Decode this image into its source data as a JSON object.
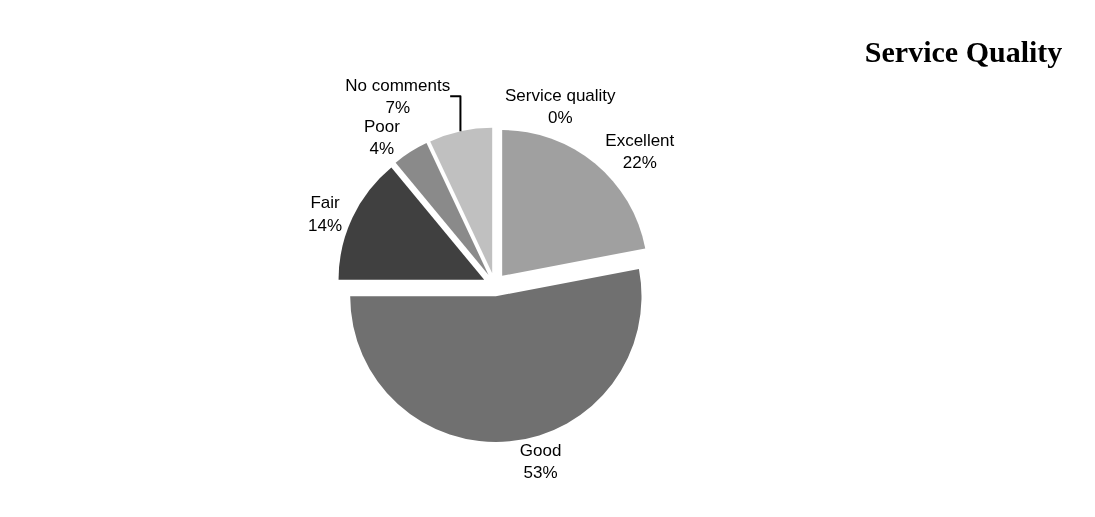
{
  "chart_data": {
    "type": "pie",
    "title": "Service Quality",
    "categories": [
      "Service quality",
      "Excellent",
      "Good",
      "Fair",
      "Poor",
      "No comments"
    ],
    "values": [
      0,
      22,
      53,
      14,
      4,
      7
    ],
    "value_labels": [
      "0%",
      "22%",
      "53%",
      "14%",
      "4%",
      "7%"
    ],
    "colors": [
      "#d9d9d9",
      "#a0a0a0",
      "#707070",
      "#404040",
      "#8a8a8a",
      "#c0c0c0"
    ],
    "legend": false
  }
}
